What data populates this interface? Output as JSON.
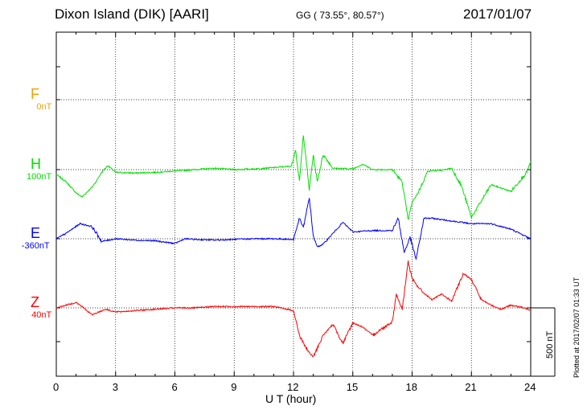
{
  "header": {
    "station": "Dixon Island (DIK)  [AARI]",
    "coords": "GG ( 73.55°,  80.57°)",
    "date": "2017/01/07"
  },
  "footer": {
    "xlabel": "U T (hour)",
    "plotted": "Plotted at 2017/02/07 01:33 UT"
  },
  "scale_bar": {
    "label": "500 nT",
    "value": 500
  },
  "colors": {
    "F": "#f0a000",
    "H": "#00e000",
    "E": "#0000ff",
    "Z": "#ff0000",
    "grid": "#000000"
  },
  "channels": [
    {
      "id": "F",
      "letter": "F",
      "baseline": "0nT",
      "color": "#f0a000"
    },
    {
      "id": "H",
      "letter": "H",
      "baseline": "100nT",
      "color": "#00e000"
    },
    {
      "id": "E",
      "letter": "E",
      "baseline": "-360nT",
      "color": "#0000ff"
    },
    {
      "id": "Z",
      "letter": "Z",
      "baseline": "40nT",
      "color": "#ff0000"
    }
  ],
  "chart_data": {
    "type": "line",
    "title": "Dixon Island (DIK)  [AARI]",
    "xlabel": "U T (hour)",
    "ylabel": "",
    "xlim": [
      0,
      24
    ],
    "x_ticks": [
      "0",
      "3",
      "6",
      "9",
      "12",
      "15",
      "18",
      "21",
      "24"
    ],
    "grid": true,
    "units": "nT",
    "series": [
      {
        "name": "F",
        "baseline_nT": 0,
        "points": []
      },
      {
        "name": "H",
        "baseline_nT": 100,
        "points": [
          [
            0,
            -35
          ],
          [
            0.5,
            -90
          ],
          [
            1,
            -170
          ],
          [
            1.3,
            -200
          ],
          [
            1.8,
            -130
          ],
          [
            2,
            -90
          ],
          [
            2.3,
            -20
          ],
          [
            2.6,
            30
          ],
          [
            3,
            -20
          ],
          [
            4,
            -25
          ],
          [
            5,
            -20
          ],
          [
            6,
            -10
          ],
          [
            7,
            0
          ],
          [
            8,
            10
          ],
          [
            9,
            0
          ],
          [
            10,
            5
          ],
          [
            11,
            15
          ],
          [
            11.9,
            25
          ],
          [
            12.1,
            150
          ],
          [
            12.3,
            -90
          ],
          [
            12.5,
            260
          ],
          [
            12.8,
            -150
          ],
          [
            13,
            110
          ],
          [
            13.2,
            -90
          ],
          [
            13.5,
            110
          ],
          [
            14,
            10
          ],
          [
            15,
            5
          ],
          [
            15.5,
            40
          ],
          [
            16,
            0
          ],
          [
            17,
            0
          ],
          [
            17.5,
            -90
          ],
          [
            17.8,
            -370
          ],
          [
            18,
            -240
          ],
          [
            18.3,
            -170
          ],
          [
            18.8,
            -10
          ],
          [
            19.5,
            -5
          ],
          [
            20,
            10
          ],
          [
            20.5,
            -120
          ],
          [
            21,
            -350
          ],
          [
            22,
            -110
          ],
          [
            23,
            -160
          ],
          [
            23.8,
            -20
          ],
          [
            24,
            60
          ]
        ]
      },
      {
        "name": "E",
        "baseline_nT": -360,
        "points": [
          [
            0,
            0
          ],
          [
            0.5,
            40
          ],
          [
            1.2,
            110
          ],
          [
            1.8,
            90
          ],
          [
            2.3,
            -20
          ],
          [
            3,
            0
          ],
          [
            4,
            -10
          ],
          [
            5,
            -15
          ],
          [
            6,
            -35
          ],
          [
            6.5,
            0
          ],
          [
            7,
            -5
          ],
          [
            8,
            -10
          ],
          [
            9,
            -5
          ],
          [
            10,
            0
          ],
          [
            11,
            0
          ],
          [
            12,
            -5
          ],
          [
            12.3,
            150
          ],
          [
            12.5,
            80
          ],
          [
            12.8,
            300
          ],
          [
            13,
            20
          ],
          [
            13.2,
            -60
          ],
          [
            13.5,
            -40
          ],
          [
            14,
            40
          ],
          [
            14.5,
            120
          ],
          [
            15,
            50
          ],
          [
            16,
            60
          ],
          [
            17,
            60
          ],
          [
            17.3,
            150
          ],
          [
            17.6,
            -100
          ],
          [
            17.9,
            10
          ],
          [
            18.2,
            -150
          ],
          [
            18.6,
            150
          ],
          [
            19,
            150
          ],
          [
            20,
            130
          ],
          [
            21,
            110
          ],
          [
            22,
            110
          ],
          [
            23,
            70
          ],
          [
            24,
            0
          ]
        ]
      },
      {
        "name": "Z",
        "baseline_nT": 40,
        "points": [
          [
            0,
            0
          ],
          [
            1,
            40
          ],
          [
            1.3,
            10
          ],
          [
            1.8,
            -50
          ],
          [
            2.5,
            -10
          ],
          [
            3,
            -30
          ],
          [
            4,
            -20
          ],
          [
            5,
            -10
          ],
          [
            6,
            0
          ],
          [
            7,
            0
          ],
          [
            8,
            10
          ],
          [
            9,
            10
          ],
          [
            10,
            10
          ],
          [
            11,
            10
          ],
          [
            12,
            -20
          ],
          [
            12.3,
            -200
          ],
          [
            12.7,
            -310
          ],
          [
            13,
            -360
          ],
          [
            13.5,
            -200
          ],
          [
            14,
            -120
          ],
          [
            14.5,
            -260
          ],
          [
            15,
            -110
          ],
          [
            15.5,
            -140
          ],
          [
            16,
            -200
          ],
          [
            17,
            -100
          ],
          [
            17.2,
            100
          ],
          [
            17.5,
            -10
          ],
          [
            17.8,
            340
          ],
          [
            18,
            210
          ],
          [
            18.5,
            120
          ],
          [
            19,
            60
          ],
          [
            19.5,
            100
          ],
          [
            20,
            50
          ],
          [
            20.6,
            250
          ],
          [
            21,
            210
          ],
          [
            21.5,
            60
          ],
          [
            22,
            20
          ],
          [
            22.5,
            -10
          ],
          [
            23,
            20
          ],
          [
            23.5,
            5
          ],
          [
            24,
            -15
          ]
        ]
      }
    ]
  }
}
